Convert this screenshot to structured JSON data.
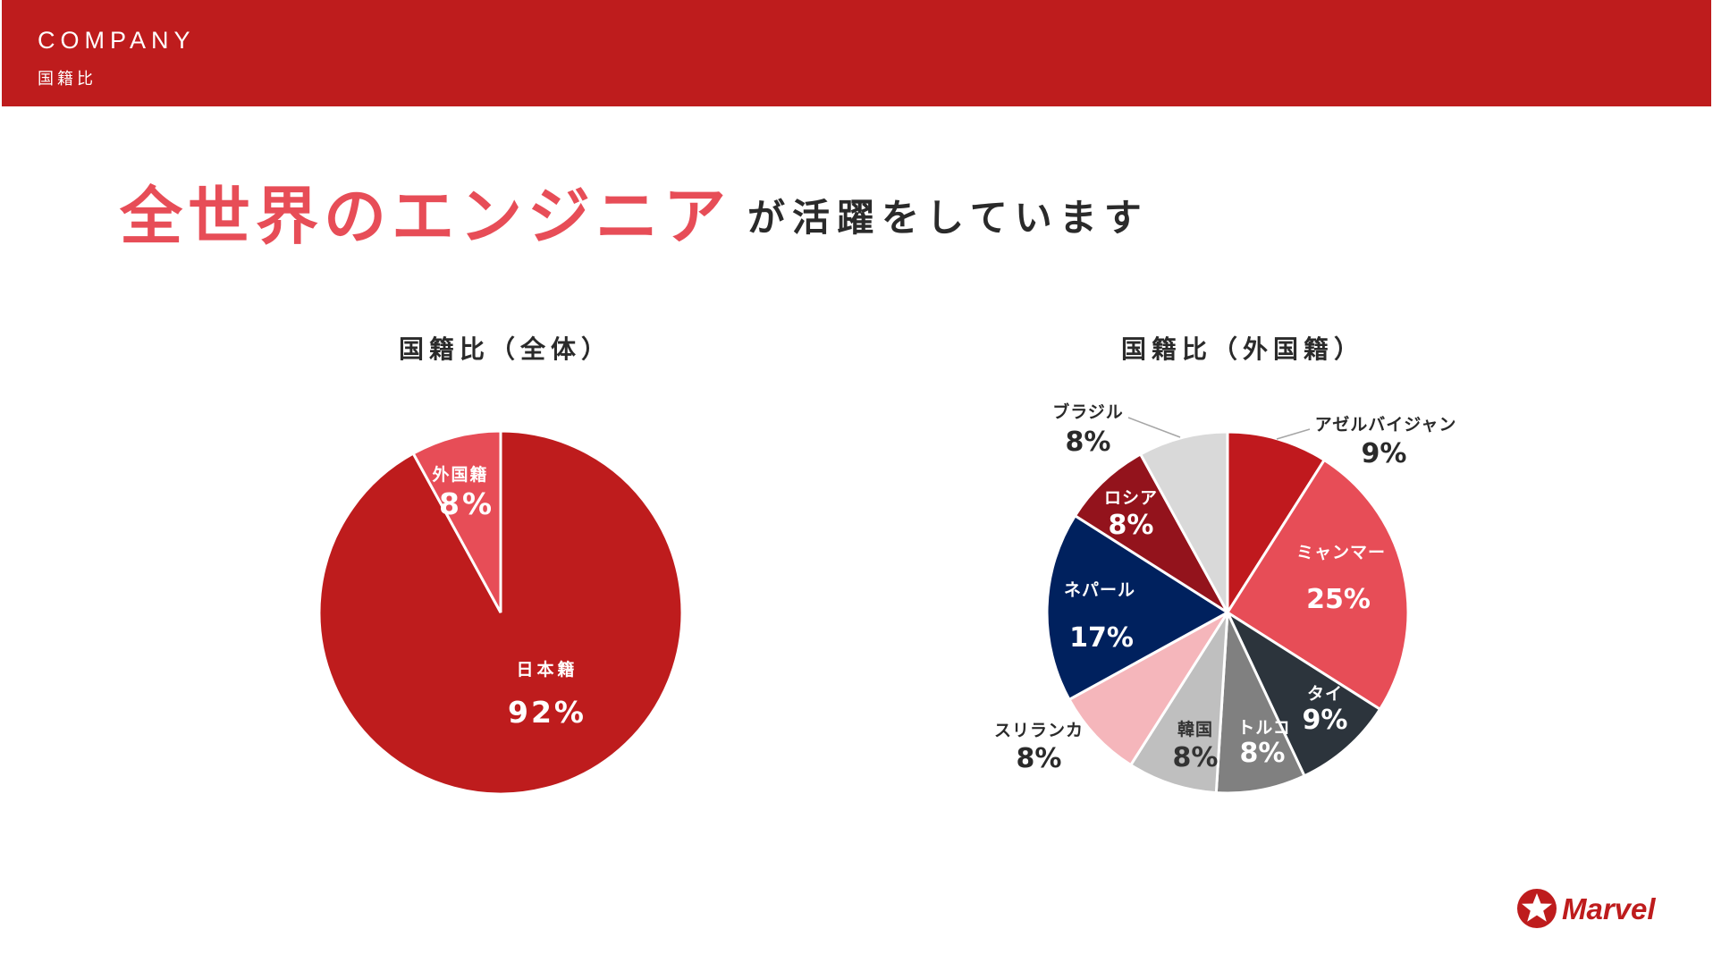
{
  "header": {
    "title": "COMPANY",
    "subtitle": "国籍比"
  },
  "headline": {
    "main": "全世界のエンジニア",
    "rest": "が活躍をしています"
  },
  "logo": {
    "text": "Marvel",
    "icon": "star-in-circle-icon",
    "color": "#be1c1d"
  },
  "colors": {
    "brand_red": "#be1c1d",
    "accent_pink": "#e74d57",
    "dark_text": "#2a2a2a"
  },
  "chart_data": [
    {
      "type": "pie",
      "title": "国籍比（全体）",
      "slices": [
        {
          "label": "日本籍",
          "value": 92,
          "display": "92%",
          "color": "#be1c1d",
          "label_color": "#ffffff"
        },
        {
          "label": "外国籍",
          "value": 8,
          "display": "8%",
          "color": "#e74d57",
          "label_color": "#ffffff"
        }
      ]
    },
    {
      "type": "pie",
      "title": "国籍比（外国籍）",
      "slices": [
        {
          "label": "アゼルバイジャン",
          "value": 9,
          "display": "9%",
          "color": "#c0191e",
          "label_color": "#2a2a2a"
        },
        {
          "label": "ミャンマー",
          "value": 25,
          "display": "25%",
          "color": "#e74d57",
          "label_color": "#ffffff"
        },
        {
          "label": "タイ",
          "value": 9,
          "display": "9%",
          "color": "#2c343c",
          "label_color": "#ffffff"
        },
        {
          "label": "トルコ",
          "value": 8,
          "display": "8%",
          "color": "#808080",
          "label_color": "#ffffff"
        },
        {
          "label": "韓国",
          "value": 8,
          "display": "8%",
          "color": "#bfbfbf",
          "label_color": "#333333"
        },
        {
          "label": "スリランカ",
          "value": 8,
          "display": "8%",
          "color": "#f5b6bb",
          "label_color": "#2a2a2a"
        },
        {
          "label": "ネパール",
          "value": 17,
          "display": "17%",
          "color": "#00215e",
          "label_color": "#ffffff"
        },
        {
          "label": "ロシア",
          "value": 8,
          "display": "8%",
          "color": "#93131c",
          "label_color": "#ffffff"
        },
        {
          "label": "ブラジル",
          "value": 8,
          "display": "8%",
          "color": "#d9d9d9",
          "label_color": "#2a2a2a"
        }
      ]
    }
  ]
}
